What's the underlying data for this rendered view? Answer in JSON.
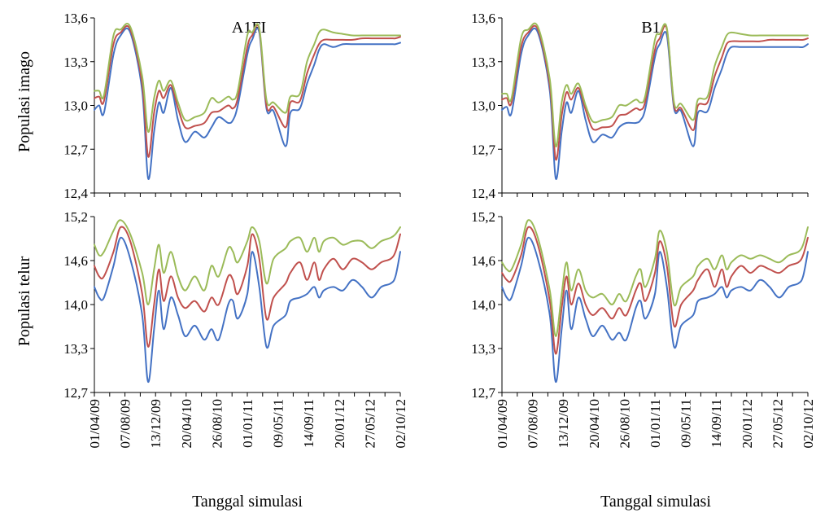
{
  "figure": {
    "ylabel_top": "Populasi imago",
    "ylabel_bottom": "Populasi telur",
    "xlabel": "Tanggal simulasi",
    "series_colors": [
      "#4472C4",
      "#C0504D",
      "#9BBB59"
    ]
  },
  "chart_data": [
    {
      "type": "line",
      "title": "A1FI",
      "ylabel": "Populasi imago",
      "xlabel": "",
      "xlim": [
        0,
        1280
      ],
      "ylim": [
        12.4,
        13.6
      ],
      "yticks": [
        "12,4",
        "12,7",
        "13,0",
        "13,3",
        "13,6"
      ],
      "xticks": [
        "01/04/09",
        "07/08/09",
        "13/12/09",
        "20/04/10",
        "26/08/10",
        "01/01/11",
        "09/05/11",
        "14/09/11",
        "20/01/12",
        "27/05/12",
        "02/10/12"
      ],
      "x": [
        0,
        20,
        40,
        80,
        110,
        150,
        200,
        225,
        250,
        270,
        290,
        320,
        350,
        380,
        420,
        460,
        490,
        520,
        560,
        580,
        600,
        640,
        660,
        690,
        720,
        750,
        800,
        820,
        860,
        890,
        920,
        940,
        960,
        1000,
        1040,
        1080,
        1120,
        1160,
        1200,
        1240,
        1260,
        1280
      ],
      "series": [
        {
          "values": [
            12.97,
            13.0,
            12.95,
            13.35,
            13.48,
            13.5,
            13.1,
            12.5,
            12.82,
            13.02,
            12.95,
            13.12,
            12.9,
            12.75,
            12.82,
            12.78,
            12.85,
            12.92,
            12.88,
            12.9,
            13.0,
            13.35,
            13.45,
            13.5,
            12.98,
            12.96,
            12.72,
            12.95,
            12.98,
            13.15,
            13.28,
            13.38,
            13.42,
            13.4,
            13.42,
            13.42,
            13.42,
            13.42,
            13.42,
            13.42,
            13.42,
            13.43
          ]
        },
        {
          "values": [
            13.05,
            13.06,
            13.03,
            13.42,
            13.5,
            13.52,
            13.15,
            12.65,
            12.95,
            13.1,
            13.05,
            13.14,
            12.98,
            12.85,
            12.86,
            12.88,
            12.95,
            12.96,
            13.0,
            12.98,
            13.05,
            13.4,
            13.48,
            13.52,
            13.0,
            12.99,
            12.85,
            13.02,
            13.03,
            13.22,
            13.35,
            13.42,
            13.45,
            13.45,
            13.45,
            13.45,
            13.46,
            13.46,
            13.46,
            13.46,
            13.46,
            13.47
          ]
        },
        {
          "values": [
            13.1,
            13.1,
            13.07,
            13.48,
            13.52,
            13.54,
            13.2,
            12.82,
            13.05,
            13.17,
            13.1,
            13.17,
            13.02,
            12.9,
            12.92,
            12.95,
            13.05,
            13.02,
            13.06,
            13.04,
            13.1,
            13.48,
            13.5,
            13.53,
            13.04,
            13.02,
            12.95,
            13.06,
            13.08,
            13.3,
            13.42,
            13.5,
            13.52,
            13.5,
            13.49,
            13.48,
            13.48,
            13.48,
            13.48,
            13.48,
            13.48,
            13.48
          ]
        }
      ]
    },
    {
      "type": "line",
      "title": "B1",
      "ylabel": "Populasi imago",
      "xlabel": "",
      "xlim": [
        0,
        1280
      ],
      "ylim": [
        12.4,
        13.6
      ],
      "yticks": [
        "12,4",
        "12,7",
        "13,0",
        "13,3",
        "13,6"
      ],
      "xticks": [
        "01/04/09",
        "07/08/09",
        "13/12/09",
        "20/04/10",
        "26/08/10",
        "01/01/11",
        "09/05/11",
        "14/09/11",
        "20/01/12",
        "27/05/12",
        "02/10/12"
      ],
      "x": [
        0,
        20,
        40,
        80,
        110,
        150,
        200,
        225,
        250,
        270,
        290,
        320,
        350,
        380,
        420,
        460,
        490,
        520,
        560,
        580,
        600,
        640,
        660,
        690,
        720,
        750,
        800,
        820,
        860,
        890,
        920,
        940,
        960,
        1000,
        1040,
        1080,
        1120,
        1160,
        1200,
        1240,
        1260,
        1280
      ],
      "series": [
        {
          "values": [
            12.97,
            12.99,
            12.95,
            13.35,
            13.48,
            13.5,
            13.1,
            12.5,
            12.82,
            13.02,
            12.95,
            13.1,
            12.9,
            12.75,
            12.8,
            12.78,
            12.85,
            12.88,
            12.88,
            12.9,
            12.98,
            13.33,
            13.42,
            13.48,
            12.98,
            12.96,
            12.72,
            12.95,
            12.96,
            13.12,
            13.25,
            13.35,
            13.4,
            13.4,
            13.4,
            13.4,
            13.4,
            13.4,
            13.4,
            13.4,
            13.4,
            13.42
          ]
        },
        {
          "values": [
            13.04,
            13.05,
            13.02,
            13.4,
            13.5,
            13.52,
            13.14,
            12.63,
            12.93,
            13.09,
            13.04,
            13.12,
            12.97,
            12.84,
            12.85,
            12.86,
            12.93,
            12.94,
            12.98,
            12.97,
            13.03,
            13.38,
            13.46,
            13.52,
            13.0,
            12.98,
            12.83,
            13.0,
            13.02,
            13.2,
            13.33,
            13.42,
            13.44,
            13.44,
            13.44,
            13.44,
            13.45,
            13.45,
            13.45,
            13.45,
            13.45,
            13.46
          ]
        },
        {
          "values": [
            13.08,
            13.08,
            13.05,
            13.46,
            13.52,
            13.54,
            13.18,
            12.72,
            13.02,
            13.14,
            13.08,
            13.15,
            13.0,
            12.89,
            12.9,
            12.92,
            13.0,
            13.0,
            13.04,
            13.02,
            13.07,
            13.45,
            13.49,
            13.53,
            13.02,
            13.01,
            12.9,
            13.04,
            13.06,
            13.27,
            13.4,
            13.48,
            13.5,
            13.49,
            13.48,
            13.48,
            13.48,
            13.48,
            13.48,
            13.48,
            13.48,
            13.48
          ]
        }
      ]
    },
    {
      "type": "line",
      "title": "",
      "ylabel": "Populasi telur",
      "xlabel": "Tanggal simulasi",
      "xlim": [
        0,
        1280
      ],
      "ylim": [
        12.7,
        15.2
      ],
      "yticks": [
        "12,7",
        "13,3",
        "14,0",
        "14,6",
        "15,2"
      ],
      "xticks": [
        "01/04/09",
        "07/08/09",
        "13/12/09",
        "20/04/10",
        "26/08/10",
        "01/01/11",
        "09/05/11",
        "14/09/11",
        "20/01/12",
        "27/05/12",
        "02/10/12"
      ],
      "x": [
        0,
        20,
        40,
        80,
        110,
        150,
        200,
        225,
        250,
        270,
        290,
        320,
        350,
        380,
        420,
        460,
        490,
        520,
        560,
        580,
        600,
        640,
        660,
        690,
        720,
        750,
        800,
        820,
        860,
        890,
        920,
        940,
        960,
        1000,
        1040,
        1080,
        1120,
        1160,
        1200,
        1240,
        1260,
        1280
      ],
      "series": [
        {
          "values": [
            14.2,
            14.05,
            14.05,
            14.5,
            14.9,
            14.6,
            13.8,
            12.85,
            13.6,
            14.15,
            13.6,
            14.05,
            13.8,
            13.5,
            13.65,
            13.45,
            13.6,
            13.45,
            13.95,
            14.0,
            13.75,
            14.1,
            14.7,
            14.2,
            13.35,
            13.65,
            13.8,
            14.0,
            14.05,
            14.1,
            14.2,
            14.05,
            14.15,
            14.2,
            14.15,
            14.3,
            14.2,
            14.05,
            14.2,
            14.25,
            14.35,
            14.7
          ]
        },
        {
          "values": [
            14.5,
            14.35,
            14.35,
            14.7,
            15.05,
            14.85,
            14.1,
            13.35,
            13.95,
            14.45,
            14.0,
            14.35,
            14.05,
            13.9,
            14.0,
            13.85,
            14.05,
            13.95,
            14.35,
            14.3,
            14.1,
            14.5,
            14.95,
            14.6,
            13.75,
            14.05,
            14.25,
            14.4,
            14.55,
            14.3,
            14.55,
            14.3,
            14.45,
            14.6,
            14.45,
            14.6,
            14.55,
            14.45,
            14.55,
            14.6,
            14.7,
            14.95
          ]
        },
        {
          "values": [
            14.8,
            14.65,
            14.7,
            15.0,
            15.15,
            14.95,
            14.4,
            13.95,
            14.45,
            14.8,
            14.4,
            14.7,
            14.35,
            14.15,
            14.35,
            14.15,
            14.5,
            14.35,
            14.75,
            14.7,
            14.55,
            14.85,
            15.05,
            14.85,
            14.25,
            14.6,
            14.75,
            14.85,
            14.9,
            14.7,
            14.9,
            14.7,
            14.85,
            14.9,
            14.8,
            14.85,
            14.85,
            14.75,
            14.85,
            14.9,
            14.95,
            15.05
          ]
        }
      ]
    },
    {
      "type": "line",
      "title": "",
      "ylabel": "Populasi telur",
      "xlabel": "Tanggal simulasi",
      "xlim": [
        0,
        1280
      ],
      "ylim": [
        12.7,
        15.2
      ],
      "yticks": [
        "12,7",
        "13,3",
        "14,0",
        "14,6",
        "15,2"
      ],
      "xticks": [
        "01/04/09",
        "07/08/09",
        "13/12/09",
        "20/04/10",
        "26/08/10",
        "01/01/11",
        "09/05/11",
        "14/09/11",
        "20/01/12",
        "27/05/12",
        "02/10/12"
      ],
      "x": [
        0,
        20,
        40,
        80,
        110,
        150,
        200,
        225,
        250,
        270,
        290,
        320,
        350,
        380,
        420,
        460,
        490,
        520,
        560,
        580,
        600,
        640,
        660,
        690,
        720,
        750,
        800,
        820,
        860,
        890,
        920,
        940,
        960,
        1000,
        1040,
        1080,
        1120,
        1160,
        1200,
        1240,
        1260,
        1280
      ],
      "series": [
        {
          "values": [
            14.2,
            14.05,
            14.05,
            14.5,
            14.9,
            14.6,
            13.8,
            12.85,
            13.6,
            14.15,
            13.6,
            14.05,
            13.75,
            13.5,
            13.65,
            13.45,
            13.55,
            13.45,
            13.9,
            14.0,
            13.75,
            14.1,
            14.7,
            14.2,
            13.35,
            13.65,
            13.8,
            14.0,
            14.05,
            14.1,
            14.2,
            14.05,
            14.15,
            14.2,
            14.15,
            14.3,
            14.2,
            14.05,
            14.2,
            14.25,
            14.35,
            14.7
          ]
        },
        {
          "values": [
            14.4,
            14.3,
            14.3,
            14.65,
            15.05,
            14.8,
            14.0,
            13.25,
            13.9,
            14.35,
            13.95,
            14.25,
            13.95,
            13.8,
            13.9,
            13.75,
            13.9,
            13.8,
            14.15,
            14.25,
            14.0,
            14.4,
            14.85,
            14.5,
            13.65,
            13.95,
            14.15,
            14.3,
            14.45,
            14.2,
            14.45,
            14.2,
            14.35,
            14.5,
            14.4,
            14.5,
            14.45,
            14.4,
            14.5,
            14.55,
            14.65,
            14.9
          ]
        },
        {
          "values": [
            14.55,
            14.45,
            14.45,
            14.8,
            15.15,
            14.9,
            14.15,
            13.5,
            14.1,
            14.55,
            14.15,
            14.45,
            14.15,
            14.05,
            14.1,
            13.95,
            14.1,
            14.0,
            14.35,
            14.45,
            14.2,
            14.6,
            15.0,
            14.7,
            13.95,
            14.2,
            14.35,
            14.5,
            14.6,
            14.45,
            14.65,
            14.45,
            14.55,
            14.65,
            14.6,
            14.65,
            14.6,
            14.55,
            14.65,
            14.7,
            14.8,
            15.05
          ]
        }
      ]
    }
  ]
}
